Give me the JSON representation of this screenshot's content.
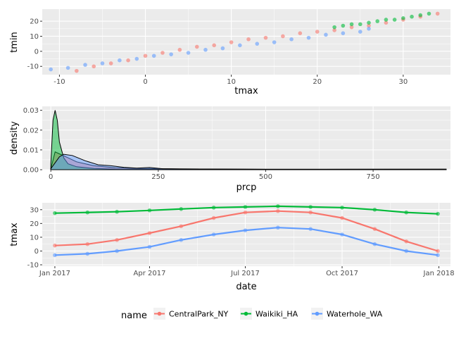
{
  "chart_data": [
    {
      "type": "scatter",
      "xlabel": "tmax",
      "ylabel": "tmin",
      "xlim": [
        -12,
        35.5
      ],
      "ylim": [
        -15.5,
        28
      ],
      "xticks": [
        -10,
        0,
        10,
        20,
        30
      ],
      "yticks": [
        -10,
        0,
        10,
        20
      ],
      "grid": true,
      "series": [
        {
          "name": "CentralPark_NY",
          "color": "#F8766D",
          "x": [
            -8,
            -6,
            -4,
            -2,
            0,
            2,
            4,
            6,
            8,
            10,
            12,
            14,
            16,
            18,
            20,
            22,
            24,
            26,
            28,
            30,
            32,
            34
          ],
          "y": [
            -13,
            -10,
            -8,
            -6,
            -3,
            -1,
            1,
            3,
            4,
            6,
            8,
            9,
            10,
            12,
            13,
            14,
            16,
            17,
            19,
            21,
            23,
            25
          ]
        },
        {
          "name": "Waikiki_HA",
          "color": "#00BA38",
          "x": [
            22,
            23,
            24,
            25,
            26,
            27,
            28,
            29,
            30,
            31,
            32,
            33
          ],
          "y": [
            16,
            17,
            18,
            18,
            19,
            20,
            21,
            21,
            22,
            23,
            24,
            25
          ]
        },
        {
          "name": "Waterhole_WA",
          "color": "#619CFF",
          "x": [
            -11,
            -9,
            -7,
            -5,
            -3,
            -1,
            1,
            3,
            5,
            7,
            9,
            11,
            13,
            15,
            17,
            19,
            21,
            23,
            25,
            26
          ],
          "y": [
            -12,
            -11,
            -9,
            -8,
            -6,
            -5,
            -3,
            -2,
            -1,
            1,
            2,
            4,
            5,
            6,
            8,
            9,
            11,
            12,
            13,
            15
          ]
        }
      ]
    },
    {
      "type": "area",
      "xlabel": "prcp",
      "ylabel": "density",
      "xlim": [
        -20,
        930
      ],
      "ylim": [
        0,
        0.032
      ],
      "xticks": [
        0,
        250,
        500,
        750
      ],
      "yticks": [
        0.0,
        0.01,
        0.02,
        0.03
      ],
      "ytick_labels": [
        "0.00",
        "0.01",
        "0.02",
        "0.03"
      ],
      "grid": true,
      "series": [
        {
          "name": "CentralPark_NY",
          "color": "#F8766D",
          "x": [
            0,
            10,
            20,
            40,
            60,
            100,
            150,
            200,
            300,
            500,
            700,
            920
          ],
          "y": [
            0.0005,
            0.009,
            0.008,
            0.006,
            0.004,
            0.002,
            0.001,
            0.0006,
            0.0004,
            0.0002,
            0.0002,
            0.0002
          ]
        },
        {
          "name": "Waikiki_HA",
          "color": "#00BA38",
          "x": [
            0,
            5,
            10,
            15,
            20,
            30,
            40,
            60,
            100,
            150,
            200,
            300,
            500,
            700,
            920
          ],
          "y": [
            0.003,
            0.025,
            0.03,
            0.025,
            0.014,
            0.006,
            0.003,
            0.0015,
            0.0006,
            0.0003,
            0.0002,
            0.0002,
            0.0001,
            0.0002,
            0.0003
          ]
        },
        {
          "name": "Waterhole_WA",
          "color": "#619CFF",
          "x": [
            0,
            10,
            20,
            30,
            50,
            80,
            110,
            140,
            170,
            200,
            230,
            260,
            300,
            500,
            700,
            920
          ],
          "y": [
            0.0005,
            0.0035,
            0.0065,
            0.0078,
            0.0072,
            0.0045,
            0.0025,
            0.002,
            0.0012,
            0.0008,
            0.0011,
            0.0005,
            0.0004,
            0.0002,
            0.0002,
            0.0002
          ]
        }
      ]
    },
    {
      "type": "scatter",
      "xlabel": "date",
      "ylabel": "tmax",
      "xlim": [
        "2016-12-20",
        "2018-01-12"
      ],
      "ylim": [
        -11,
        35
      ],
      "xticks": [
        "2017-01-01",
        "2017-04-01",
        "2017-07-01",
        "2017-10-01",
        "2018-01-01"
      ],
      "xtick_labels": [
        "Jan 2017",
        "Apr 2017",
        "Jul 2017",
        "Oct 2017",
        "Jan 2018"
      ],
      "yticks": [
        -10,
        0,
        10,
        20,
        30
      ],
      "grid": true,
      "series": [
        {
          "name": "CentralPark_NY",
          "color": "#F8766D",
          "x": [
            "2017-01-01",
            "2017-02-01",
            "2017-03-01",
            "2017-04-01",
            "2017-05-01",
            "2017-06-01",
            "2017-07-01",
            "2017-08-01",
            "2017-09-01",
            "2017-10-01",
            "2017-11-01",
            "2017-12-01",
            "2017-12-31"
          ],
          "y": [
            4,
            5,
            8,
            13,
            18,
            24,
            28,
            29,
            28,
            24,
            16,
            7,
            0
          ]
        },
        {
          "name": "Waikiki_HA",
          "color": "#00BA38",
          "x": [
            "2017-01-01",
            "2017-02-01",
            "2017-03-01",
            "2017-04-01",
            "2017-05-01",
            "2017-06-01",
            "2017-07-01",
            "2017-08-01",
            "2017-09-01",
            "2017-10-01",
            "2017-11-01",
            "2017-12-01",
            "2017-12-31"
          ],
          "y": [
            27.5,
            28,
            28.5,
            29.5,
            30.5,
            31.5,
            32,
            32.5,
            32,
            31.5,
            30,
            28,
            27
          ]
        },
        {
          "name": "Waterhole_WA",
          "color": "#619CFF",
          "x": [
            "2017-01-01",
            "2017-02-01",
            "2017-03-01",
            "2017-04-01",
            "2017-05-01",
            "2017-06-01",
            "2017-07-01",
            "2017-08-01",
            "2017-09-01",
            "2017-10-01",
            "2017-11-01",
            "2017-12-01",
            "2017-12-31"
          ],
          "y": [
            -3,
            -2,
            0,
            3,
            8,
            12,
            15,
            17,
            16,
            12,
            5,
            0,
            -3
          ]
        }
      ]
    }
  ],
  "legend": {
    "title": "name",
    "position": "bottom",
    "items": [
      {
        "label": "CentralPark_NY",
        "color": "#F8766D"
      },
      {
        "label": "Waikiki_HA",
        "color": "#00BA38"
      },
      {
        "label": "Waterhole_WA",
        "color": "#619CFF"
      }
    ]
  }
}
